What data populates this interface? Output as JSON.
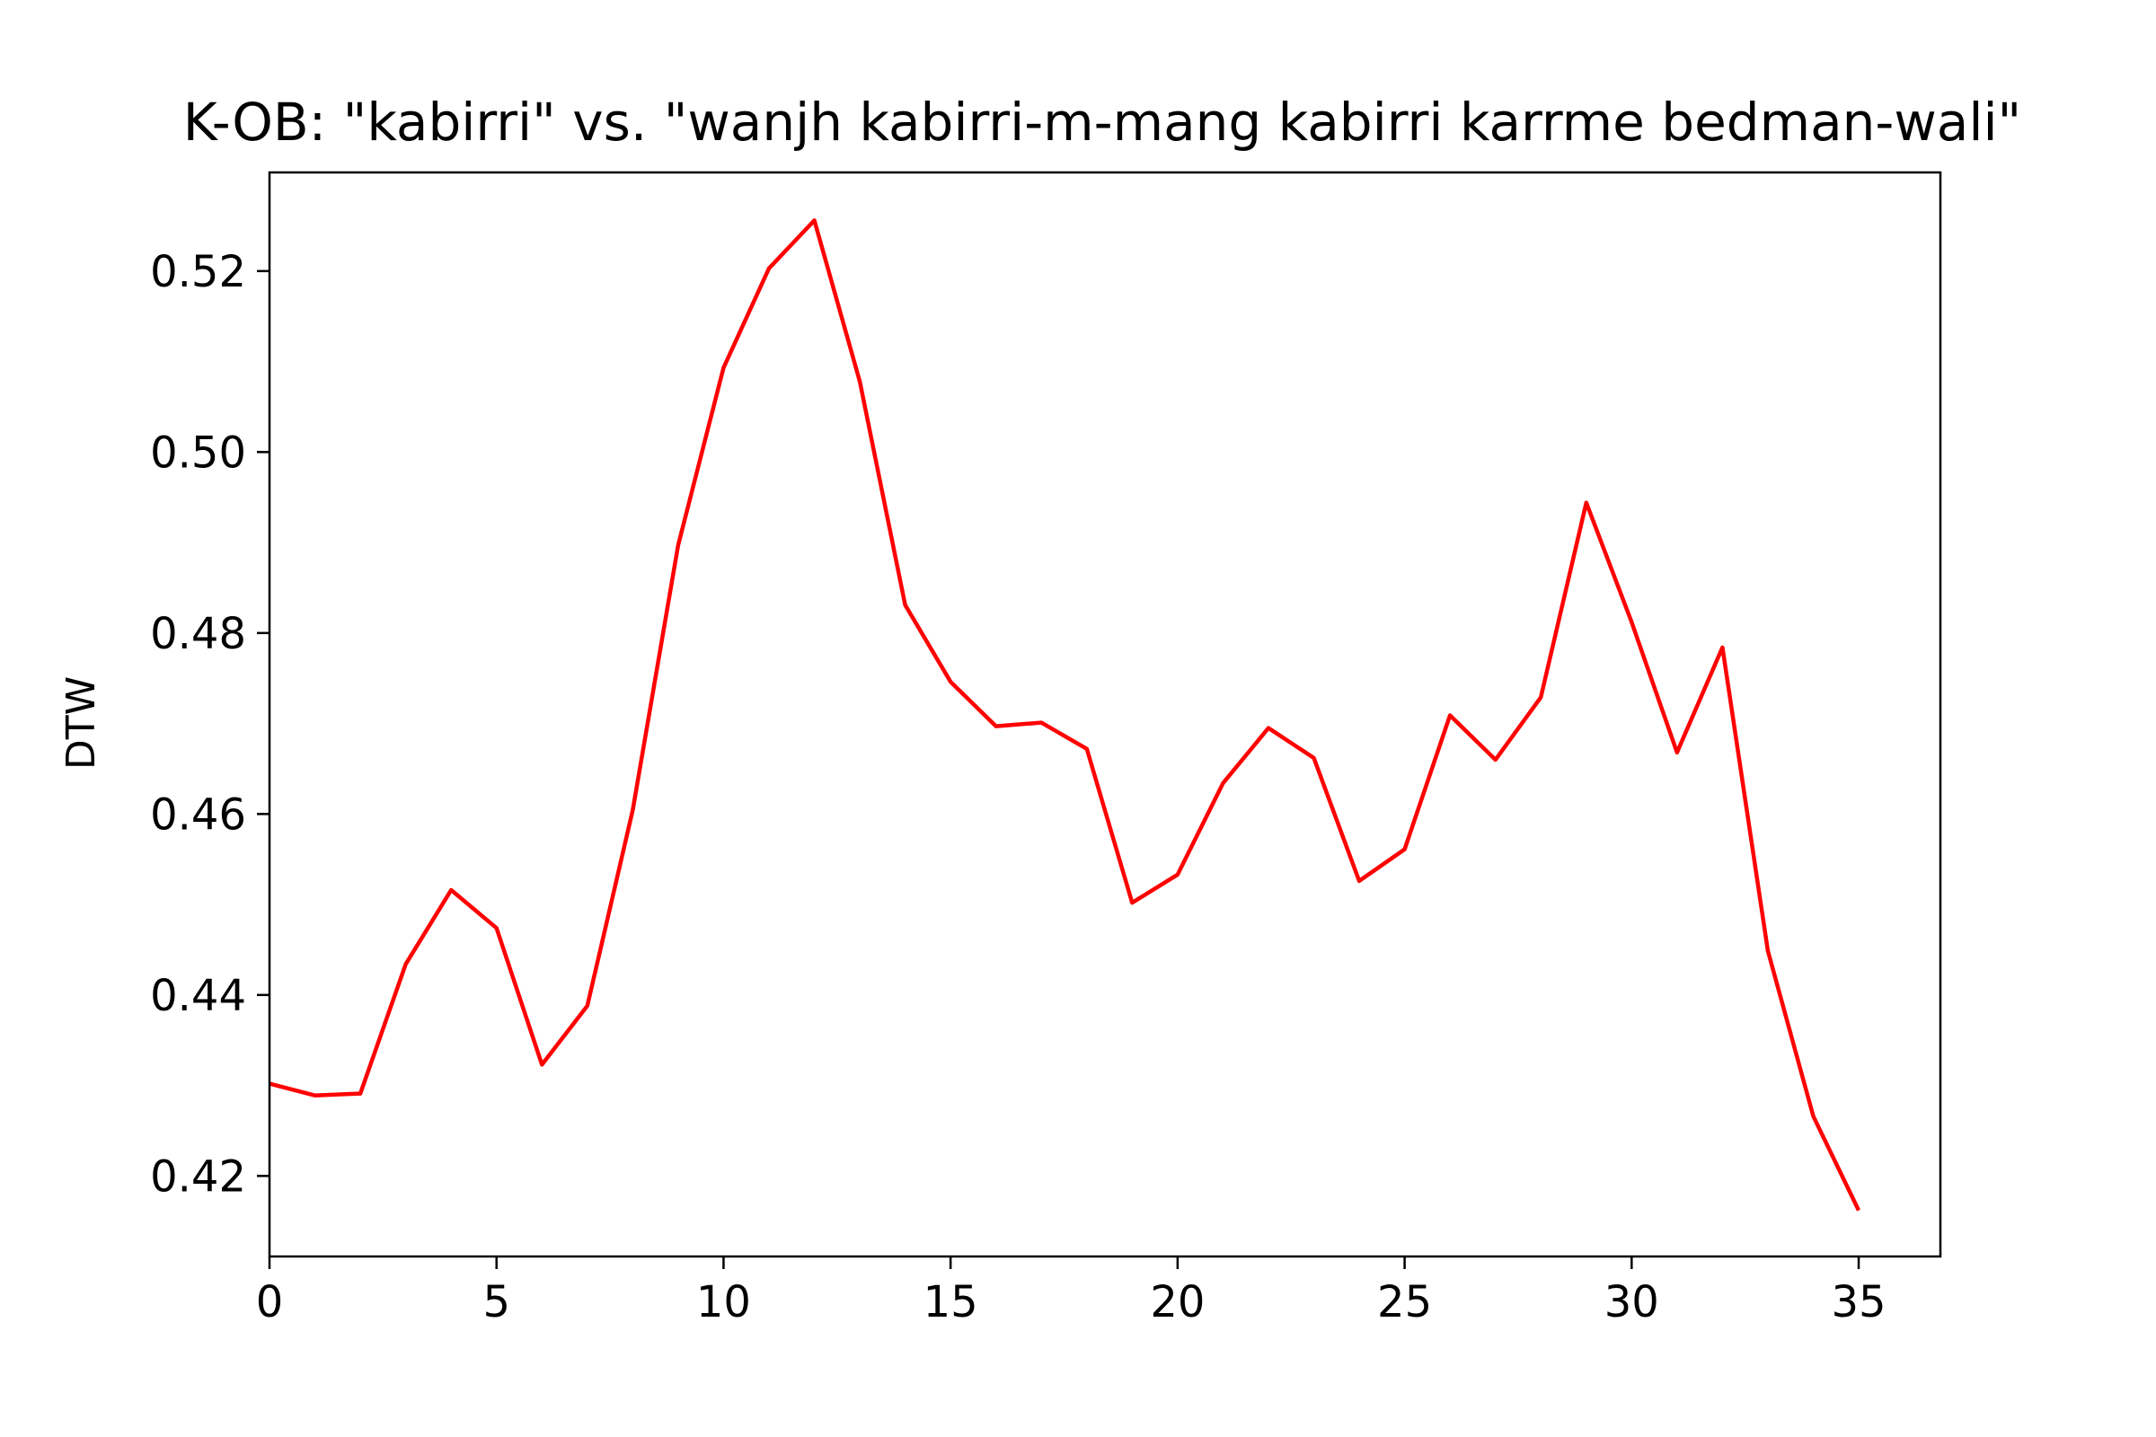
{
  "chart_data": {
    "type": "line",
    "title": "K-OB: \"kabirri\" vs. \"wanjh kabirri-m-mang kabirri karrme bedman-wali\"",
    "xlabel": "",
    "ylabel": "DTW",
    "xlim": [
      0,
      36.8
    ],
    "ylim": [
      0.4111,
      0.5309
    ],
    "xticks": [
      0,
      5,
      10,
      15,
      20,
      25,
      30,
      35
    ],
    "xtick_labels": [
      "0",
      "5",
      "10",
      "15",
      "20",
      "25",
      "30",
      "35"
    ],
    "yticks": [
      0.42,
      0.44,
      0.46,
      0.48,
      0.5,
      0.52
    ],
    "ytick_labels": [
      "0.42",
      "0.44",
      "0.46",
      "0.48",
      "0.50",
      "0.52"
    ],
    "grid": false,
    "legend": "none",
    "series": [
      {
        "color": "#ff0000",
        "x": [
          0,
          1,
          2,
          3,
          4,
          5,
          6,
          7,
          8,
          9,
          10,
          11,
          12,
          13,
          14,
          15,
          16,
          17,
          18,
          19,
          20,
          21,
          22,
          23,
          24,
          25,
          26,
          27,
          28,
          29,
          30,
          31,
          32,
          33,
          34,
          35
        ],
        "values": [
          0.4302,
          0.4289,
          0.4291,
          0.4434,
          0.4516,
          0.4474,
          0.4323,
          0.4388,
          0.4604,
          0.4897,
          0.5093,
          0.5203,
          0.5256,
          0.5078,
          0.4831,
          0.4746,
          0.4697,
          0.4701,
          0.4672,
          0.4502,
          0.4533,
          0.4634,
          0.4695,
          0.4662,
          0.4526,
          0.4561,
          0.4709,
          0.466,
          0.4729,
          0.4944,
          0.4812,
          0.4668,
          0.4784,
          0.4449,
          0.4266,
          0.4162
        ]
      }
    ]
  }
}
